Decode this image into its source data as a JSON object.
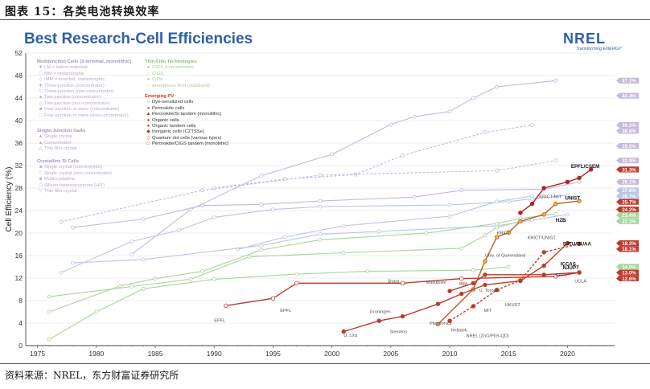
{
  "caption": "图表 15：各类电池转换效率",
  "source_note": "资料来源：NREL，东方财富证券研究所",
  "logo": {
    "name": "NREL",
    "tagline": "Transforming ENERGY"
  },
  "colors": {
    "title": "#2f5fa8",
    "emerging": "#c0392b",
    "multijunction": "#b9a8cc",
    "thinfilm": "#a9cc9a"
  },
  "legend": {
    "multijunction": {
      "title": "Multijunction Cells (2-terminal, monolithic)",
      "items": [
        "LM = lattice matched",
        "MM = metamorphic",
        "IMM = inverted, metamorphic",
        "Three-junction (concentrator)",
        "Three-junction (non-concentrator)",
        "Two-junction (concentrator)",
        "Two-junction (non-concentrator)",
        "Four-junction or more (concentrator)",
        "Four-junction or more (non-concentrator)"
      ]
    },
    "gaas": {
      "title": "Single-Junction GaAs",
      "items": [
        "Single crystal",
        "Concentrator",
        "Thin-film crystal"
      ]
    },
    "si": {
      "title": "Crystalline Si Cells",
      "items": [
        "Single crystal (concentrator)",
        "Single crystal (non-concentrator)",
        "Multicrystalline",
        "Silicon heterostructures (HIT)",
        "Thin-film crystal"
      ]
    },
    "thinfilm": {
      "title": "Thin-Film Technologies",
      "items": [
        "CIGS (concentrator)",
        "CIGS",
        "CdTe",
        "Amorphous Si:H (stabilized)"
      ]
    },
    "emerging": {
      "title": "Emerging PV",
      "items": [
        "Dye-sensitized cells",
        "Perovskite cells",
        "Perovskite/Si tandem (monolithic)",
        "Organic cells",
        "Organic tandem cells",
        "Inorganic cells (CZTSSe)",
        "Quantum dot cells (various types)",
        "Perovskite/CIGS tandem (monolithic)"
      ]
    }
  },
  "chart_data": {
    "type": "line",
    "title": "Best Research-Cell Efficiencies",
    "xlabel": "",
    "ylabel": "Cell Efficiency (%)",
    "xlim": [
      1974,
      2024
    ],
    "ylim": [
      0,
      52
    ],
    "xticks": [
      1975,
      1980,
      1985,
      1990,
      1995,
      2000,
      2005,
      2010,
      2015,
      2020
    ],
    "yticks": [
      0,
      4,
      8,
      12,
      16,
      20,
      24,
      28,
      32,
      36,
      40,
      44,
      48,
      52
    ],
    "series": [
      {
        "name": "Multijunction (concentrator)",
        "color": "#c6b8dc",
        "dash": false,
        "points": [
          [
            1983,
            16.2
          ],
          [
            1988,
            24.2
          ],
          [
            1994,
            30.2
          ],
          [
            2000,
            34
          ],
          [
            2005,
            39.3
          ],
          [
            2007,
            40.7
          ],
          [
            2010,
            41.6
          ],
          [
            2012,
            44
          ],
          [
            2014,
            46
          ],
          [
            2019,
            47.1
          ]
        ]
      },
      {
        "name": "Three-junction (non-concentrator)",
        "color": "#c6b8dc",
        "dash": true,
        "points": [
          [
            1990,
            28
          ],
          [
            1996,
            29.6
          ],
          [
            2002,
            30.4
          ],
          [
            2006,
            33.8
          ],
          [
            2013,
            37.9
          ],
          [
            2017,
            39.2
          ]
        ]
      },
      {
        "name": "Two-junction (non-concentrator)",
        "color": "#c6b8dc",
        "dash": true,
        "points": [
          [
            1977,
            22
          ],
          [
            1989,
            27.6
          ],
          [
            1999,
            30.3
          ],
          [
            2014,
            31.1
          ],
          [
            2019,
            32.9
          ]
        ]
      },
      {
        "name": "GaAs single crystal",
        "color": "#c6b8dc",
        "dash": false,
        "points": [
          [
            1978,
            21
          ],
          [
            1984,
            22.5
          ],
          [
            1989,
            24.9
          ],
          [
            1994,
            25.1
          ],
          [
            1999,
            25.7
          ],
          [
            2007,
            26.4
          ],
          [
            2011,
            27.6
          ],
          [
            2018,
            27.8
          ],
          [
            2021,
            29.1
          ]
        ]
      },
      {
        "name": "Si single crystal (non-concentrator)",
        "color": "#b9c6e4",
        "dash": false,
        "points": [
          [
            1977,
            13
          ],
          [
            1983,
            18.5
          ],
          [
            1987,
            20.5
          ],
          [
            1990,
            22.8
          ],
          [
            1995,
            24.2
          ],
          [
            1999,
            24.7
          ],
          [
            2010,
            25
          ],
          [
            2015,
            25.6
          ],
          [
            2017,
            26.1
          ],
          [
            2020,
            26.7
          ]
        ]
      },
      {
        "name": "Si heterostructures (HIT)",
        "color": "#b9c6e4",
        "dash": false,
        "points": [
          [
            1992,
            17.1
          ],
          [
            1996,
            19.3
          ],
          [
            2001,
            21.3
          ],
          [
            2010,
            23
          ],
          [
            2014,
            25.6
          ],
          [
            2017,
            26.6
          ]
        ]
      },
      {
        "name": "Multicrystalline Si",
        "color": "#b9c6e4",
        "dash": false,
        "points": [
          [
            1978,
            14.7
          ],
          [
            1984,
            15.3
          ],
          [
            1994,
            17.8
          ],
          [
            1999,
            19.8
          ],
          [
            2004,
            20.3
          ],
          [
            2014,
            21.3
          ],
          [
            2017,
            22.3
          ],
          [
            2020,
            23.3
          ]
        ]
      },
      {
        "name": "CIGS",
        "color": "#a9d49a",
        "dash": false,
        "points": [
          [
            1976,
            6
          ],
          [
            1982,
            10.6
          ],
          [
            1985,
            11.9
          ],
          [
            1989,
            13.2
          ],
          [
            1994,
            17
          ],
          [
            1999,
            18.8
          ],
          [
            2008,
            20
          ],
          [
            2014,
            21.7
          ],
          [
            2016,
            22.6
          ],
          [
            2019,
            23.4
          ]
        ]
      },
      {
        "name": "CdTe",
        "color": "#a9d49a",
        "dash": false,
        "points": [
          [
            1976,
            8.7
          ],
          [
            1983,
            10.5
          ],
          [
            1988,
            11.8
          ],
          [
            1993,
            15.8
          ],
          [
            2001,
            16.5
          ],
          [
            2011,
            17.3
          ],
          [
            2013,
            19.6
          ],
          [
            2014,
            21
          ],
          [
            2016,
            22.1
          ]
        ]
      },
      {
        "name": "Amorphous Si:H (stabilized)",
        "color": "#a9d49a",
        "dash": false,
        "points": [
          [
            1976,
            1.1
          ],
          [
            1980,
            6
          ],
          [
            1984,
            10.1
          ],
          [
            1990,
            11.8
          ],
          [
            1997,
            12.7
          ],
          [
            2003,
            13.2
          ],
          [
            2012,
            13.4
          ],
          [
            2015,
            14
          ]
        ]
      },
      {
        "name": "Perovskite cells",
        "color": "#c05a17",
        "dash": false,
        "points": [
          [
            2009,
            3.8
          ],
          [
            2012,
            10
          ],
          [
            2013,
            15
          ],
          [
            2014,
            19.3
          ],
          [
            2015,
            20.1
          ],
          [
            2016,
            22.1
          ],
          [
            2018,
            23.3
          ],
          [
            2019,
            25.2
          ],
          [
            2021,
            25.7
          ]
        ]
      },
      {
        "name": "Perovskite/Si tandem (monolithic)",
        "color": "#b3202a",
        "dash": false,
        "points": [
          [
            2016,
            23.6
          ],
          [
            2017,
            25.2
          ],
          [
            2018,
            28
          ],
          [
            2020,
            29.1
          ],
          [
            2021,
            29.8
          ],
          [
            2022,
            31.3
          ]
        ]
      },
      {
        "name": "Dye-sensitized cells",
        "color": "#c0392b",
        "dash": false,
        "points": [
          [
            1991,
            7.1
          ],
          [
            1995,
            8.4
          ],
          [
            1997,
            11.1
          ],
          [
            2006,
            11.1
          ],
          [
            2011,
            11.9
          ],
          [
            2019,
            12.3
          ],
          [
            2021,
            13
          ]
        ]
      },
      {
        "name": "Organic cells",
        "color": "#c0392b",
        "dash": false,
        "points": [
          [
            2001,
            2.5
          ],
          [
            2004,
            4.4
          ],
          [
            2006,
            5.2
          ],
          [
            2009,
            7.4
          ],
          [
            2011,
            9.2
          ],
          [
            2013,
            10.8
          ],
          [
            2016,
            11.5
          ],
          [
            2018,
            14.2
          ],
          [
            2020,
            18.2
          ]
        ]
      },
      {
        "name": "Quantum dot cells",
        "color": "#c0392b",
        "dash": true,
        "points": [
          [
            2010,
            4.4
          ],
          [
            2012,
            7
          ],
          [
            2014,
            9.9
          ],
          [
            2016,
            11.6
          ],
          [
            2018,
            16.6
          ],
          [
            2021,
            18.1
          ]
        ]
      },
      {
        "name": "Inorganic cells (CZTSSe)",
        "color": "#c0392b",
        "dash": false,
        "points": [
          [
            2010,
            9.7
          ],
          [
            2012,
            11.1
          ],
          [
            2013,
            12.6
          ],
          [
            2018,
            12.6
          ],
          [
            2021,
            13
          ]
        ]
      }
    ],
    "end_labels": [
      {
        "value": 47.1,
        "text": "47.1%",
        "series": "multijunction"
      },
      {
        "value": 44.4,
        "text": "44.4%",
        "series": "multijunction"
      },
      {
        "value": 39.2,
        "text": "39.2%",
        "series": "multijunction"
      },
      {
        "value": 38.8,
        "text": "38.8%",
        "series": "multijunction"
      },
      {
        "value": 35.5,
        "text": "35.5%",
        "series": "multijunction"
      },
      {
        "value": 32.9,
        "text": "32.9%",
        "series": "multijunction"
      },
      {
        "value": 31.3,
        "text": "31.3%",
        "series": "emerging"
      },
      {
        "value": 29.1,
        "text": "29.1%",
        "series": "multijunction"
      },
      {
        "value": 27.6,
        "text": "27.6%",
        "series": "si"
      },
      {
        "value": 26.7,
        "text": "26.7%",
        "series": "si"
      },
      {
        "value": 25.7,
        "text": "25.7%",
        "series": "emerging"
      },
      {
        "value": 24.2,
        "text": "24.2%",
        "series": "emerging"
      },
      {
        "value": 23.4,
        "text": "23.4%",
        "series": "thinfilm"
      },
      {
        "value": 22.1,
        "text": "22.1%",
        "series": "thinfilm"
      },
      {
        "value": 18.2,
        "text": "18.2%",
        "series": "emerging"
      },
      {
        "value": 18.1,
        "text": "18.1%",
        "series": "emerging"
      },
      {
        "value": 14.0,
        "text": "14.0%",
        "series": "thinfilm"
      },
      {
        "value": 13.0,
        "text": "13.0%",
        "series": "emerging"
      },
      {
        "value": 12.6,
        "text": "12.6%",
        "series": "emerging"
      }
    ],
    "annotations": [
      {
        "x": 2020.3,
        "y": 31.6,
        "text": "EPFL/CSEM"
      },
      {
        "x": 2019.8,
        "y": 25.9,
        "text": "UNIST"
      },
      {
        "x": 2019.0,
        "y": 22.0,
        "text": "HZB"
      },
      {
        "x": 2017.6,
        "y": 26.2,
        "text": "KRICT/MIT"
      },
      {
        "x": 2016.6,
        "y": 18.9,
        "text": "KRICT/UNIST"
      },
      {
        "x": 2014.0,
        "y": 19.8,
        "text": "KRICT"
      },
      {
        "x": 2019.6,
        "y": 17.8,
        "text": "SJTU/BUAA"
      },
      {
        "x": 2019.6,
        "y": 13.6,
        "text": "NJUPT"
      },
      {
        "x": 2019.0,
        "y": 12.3,
        "text": "EPFL"
      },
      {
        "x": 2019.4,
        "y": 14.2,
        "text": "ICCAS"
      },
      {
        "x": 2020.6,
        "y": 11.2,
        "text": "UCLA"
      },
      {
        "x": 2010.8,
        "y": 10.7,
        "text": "IBM"
      },
      {
        "x": 2008.0,
        "y": 11.0,
        "text": "Mitsubishi"
      },
      {
        "x": 2004.7,
        "y": 11.2,
        "text": "Sharp"
      },
      {
        "x": 1995.6,
        "y": 6.0,
        "text": "EPFL"
      },
      {
        "x": 1990.0,
        "y": 4.2,
        "text": "EPFL"
      },
      {
        "x": 2001.0,
        "y": 1.6,
        "text": "U. Linz"
      },
      {
        "x": 2003.2,
        "y": 5.8,
        "text": "Groningen"
      },
      {
        "x": 2004.9,
        "y": 2.2,
        "text": "Siemens"
      },
      {
        "x": 2008.3,
        "y": 3.7,
        "text": "Plextronics"
      },
      {
        "x": 2010.1,
        "y": 2.5,
        "text": "Heliatek"
      },
      {
        "x": 2011.4,
        "y": 1.5,
        "text": "NREL (ZnO/PbS-QD)"
      },
      {
        "x": 2013.0,
        "y": 15.8,
        "text": "Univ. of Queensland"
      },
      {
        "x": 2012.5,
        "y": 9.6,
        "text": "U. Toronto"
      },
      {
        "x": 2014.7,
        "y": 7.0,
        "text": "HKUST"
      },
      {
        "x": 2012.9,
        "y": 6.0,
        "text": "MIT"
      }
    ]
  }
}
